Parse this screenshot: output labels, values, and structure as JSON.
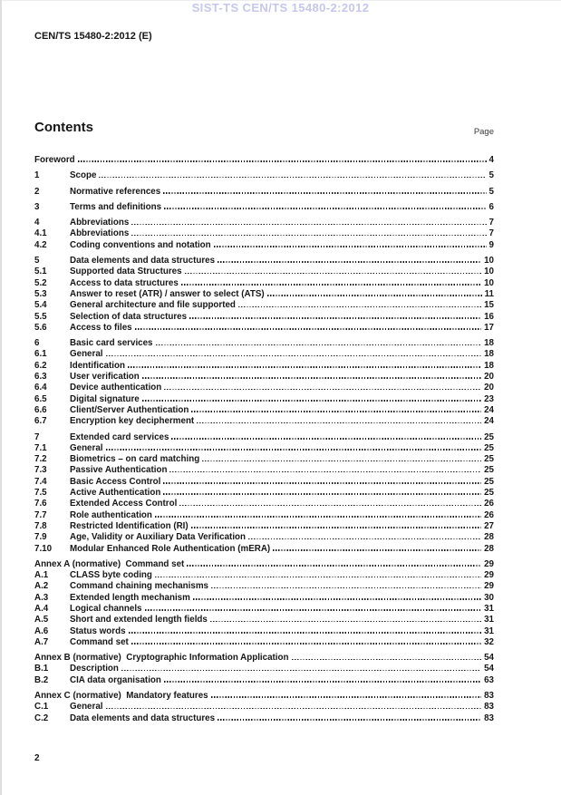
{
  "header": {
    "watermark": "SIST-TS CEN/TS 15480-2:2012",
    "doc_ref": "CEN/TS 15480-2:2012 (E)"
  },
  "contents": {
    "title": "Contents",
    "page_label": "Page",
    "entries": [
      {
        "num": "",
        "title": "Foreword",
        "page": "4",
        "group_start": false
      },
      {
        "num": "1",
        "title": "Scope",
        "page": "5",
        "group_start": true
      },
      {
        "num": "2",
        "title": "Normative references",
        "page": "5",
        "group_start": true
      },
      {
        "num": "3",
        "title": "Terms and definitions",
        "page": "6",
        "group_start": true
      },
      {
        "num": "4",
        "title": "Abbreviations",
        "page": "7",
        "group_start": true
      },
      {
        "num": "4.1",
        "title": "Abbreviations",
        "page": "7",
        "group_start": false
      },
      {
        "num": "4.2",
        "title": "Coding conventions and notation",
        "page": "9",
        "group_start": false
      },
      {
        "num": "5",
        "title": "Data elements and data structures",
        "page": "10",
        "group_start": true
      },
      {
        "num": "5.1",
        "title": "Supported data Structures",
        "page": "10",
        "group_start": false
      },
      {
        "num": "5.2",
        "title": "Access to data structures",
        "page": "10",
        "group_start": false
      },
      {
        "num": "5.3",
        "title": "Answer to reset (ATR) / answer to select (ATS)",
        "page": "11",
        "group_start": false
      },
      {
        "num": "5.4",
        "title": "General architecture and file supported",
        "page": "15",
        "group_start": false
      },
      {
        "num": "5.5",
        "title": "Selection of data structures",
        "page": "16",
        "group_start": false
      },
      {
        "num": "5.6",
        "title": "Access to files",
        "page": "17",
        "group_start": false
      },
      {
        "num": "6",
        "title": "Basic card services",
        "page": "18",
        "group_start": true
      },
      {
        "num": "6.1",
        "title": "General",
        "page": "18",
        "group_start": false
      },
      {
        "num": "6.2",
        "title": "Identification",
        "page": "18",
        "group_start": false
      },
      {
        "num": "6.3",
        "title": "User verification",
        "page": "20",
        "group_start": false
      },
      {
        "num": "6.4",
        "title": "Device authentication",
        "page": "20",
        "group_start": false
      },
      {
        "num": "6.5",
        "title": "Digital signature",
        "page": "23",
        "group_start": false
      },
      {
        "num": "6.6",
        "title": "Client/Server Authentication",
        "page": "24",
        "group_start": false
      },
      {
        "num": "6.7",
        "title": "Encryption key decipherment",
        "page": "24",
        "group_start": false
      },
      {
        "num": "7",
        "title": "Extended card services",
        "page": "25",
        "group_start": true
      },
      {
        "num": "7.1",
        "title": "General",
        "page": "25",
        "group_start": false
      },
      {
        "num": "7.2",
        "title": "Biometrics – on card matching",
        "page": "25",
        "group_start": false
      },
      {
        "num": "7.3",
        "title": "Passive Authentication",
        "page": "25",
        "group_start": false
      },
      {
        "num": "7.4",
        "title": "Basic Access Control",
        "page": "25",
        "group_start": false
      },
      {
        "num": "7.5",
        "title": "Active Authentication",
        "page": "25",
        "group_start": false
      },
      {
        "num": "7.6",
        "title": "Extended Access Control",
        "page": "26",
        "group_start": false
      },
      {
        "num": "7.7",
        "title": "Role authentication",
        "page": "26",
        "group_start": false
      },
      {
        "num": "7.8",
        "title": "Restricted Identification (RI)",
        "page": "27",
        "group_start": false
      },
      {
        "num": "7.9",
        "title": "Age, Validity or Auxiliary Data Verification",
        "page": "28",
        "group_start": false
      },
      {
        "num": "7.10",
        "title": "Modular Enhanced Role Authentication (mERA)",
        "page": "28",
        "group_start": false
      },
      {
        "num": "",
        "title": "Annex A (normative)  Command set",
        "page": "29",
        "group_start": true
      },
      {
        "num": "A.1",
        "title": "CLASS byte coding",
        "page": "29",
        "group_start": false
      },
      {
        "num": "A.2",
        "title": "Command chaining mechanisms",
        "page": "29",
        "group_start": false
      },
      {
        "num": "A.3",
        "title": "Extended length mechanism",
        "page": "30",
        "group_start": false
      },
      {
        "num": "A.4",
        "title": "Logical channels",
        "page": "31",
        "group_start": false
      },
      {
        "num": "A.5",
        "title": "Short and extended length fields",
        "page": "31",
        "group_start": false
      },
      {
        "num": "A.6",
        "title": "Status words",
        "page": "31",
        "group_start": false
      },
      {
        "num": "A.7",
        "title": "Command set",
        "page": "32",
        "group_start": false
      },
      {
        "num": "",
        "title": "Annex B (normative)  Cryptographic Information Application",
        "page": "54",
        "group_start": true
      },
      {
        "num": "B.1",
        "title": "Description",
        "page": "54",
        "group_start": false
      },
      {
        "num": "B.2",
        "title": "CIA data organisation",
        "page": "63",
        "group_start": false
      },
      {
        "num": "",
        "title": "Annex C (normative)  Mandatory features",
        "page": "83",
        "group_start": true
      },
      {
        "num": "C.1",
        "title": "General",
        "page": "83",
        "group_start": false
      },
      {
        "num": "C.2",
        "title": "Data elements and data structures",
        "page": "83",
        "group_start": false
      }
    ]
  },
  "footer": {
    "page_number": "2"
  },
  "colors": {
    "watermark": "#c6c6ee",
    "text": "#161616"
  }
}
